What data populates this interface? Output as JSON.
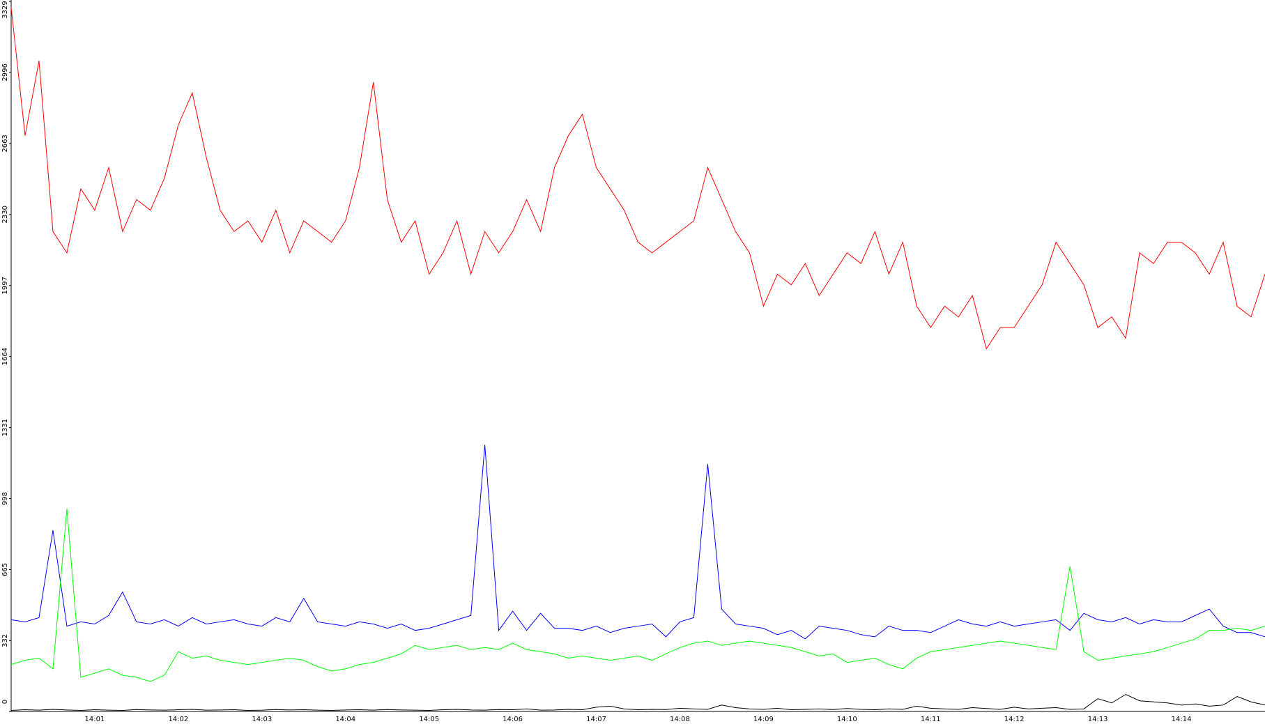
{
  "chart_data": {
    "type": "line",
    "categories": [
      null,
      null,
      null,
      null,
      null,
      null,
      "14:01",
      null,
      null,
      null,
      null,
      null,
      "14:02",
      null,
      null,
      null,
      null,
      null,
      "14:03",
      null,
      null,
      null,
      null,
      null,
      "14:04",
      null,
      null,
      null,
      null,
      null,
      "14:05",
      null,
      null,
      null,
      null,
      null,
      "14:06",
      null,
      null,
      null,
      null,
      null,
      "14:07",
      null,
      null,
      null,
      null,
      null,
      "14:08",
      null,
      null,
      null,
      null,
      null,
      "14:09",
      null,
      null,
      null,
      null,
      null,
      "14:10",
      null,
      null,
      null,
      null,
      null,
      "14:11",
      null,
      null,
      null,
      null,
      null,
      "14:12",
      null,
      null,
      null,
      null,
      null,
      "14:13",
      null,
      null,
      null,
      null,
      null,
      "14:14",
      null,
      null,
      null,
      null,
      null,
      null
    ],
    "ylim": [
      0,
      3329
    ],
    "yticks": [
      0,
      332,
      665,
      998,
      1331,
      1664,
      1997,
      2330,
      2663,
      2996,
      3329
    ],
    "series": [
      {
        "color": "#ff0000",
        "values": [
          3300,
          2700,
          3050,
          2250,
          2150,
          2450,
          2350,
          2550,
          2250,
          2400,
          2350,
          2500,
          2750,
          2900,
          2600,
          2350,
          2250,
          2300,
          2200,
          2350,
          2150,
          2300,
          2250,
          2200,
          2300,
          2550,
          2950,
          2400,
          2200,
          2300,
          2050,
          2150,
          2300,
          2050,
          2250,
          2150,
          2250,
          2400,
          2250,
          2550,
          2700,
          2800,
          2550,
          2450,
          2350,
          2200,
          2150,
          2200,
          2250,
          2300,
          2550,
          2400,
          2250,
          2150,
          1900,
          2050,
          2000,
          2100,
          1950,
          2050,
          2150,
          2100,
          2250,
          2050,
          2200,
          1900,
          1800,
          1900,
          1850,
          1950,
          1700,
          1800,
          1800,
          1900,
          2000,
          2200,
          2100,
          2000,
          1800,
          1850,
          1750,
          2150,
          2100,
          2200,
          2200,
          2150,
          2050,
          2200,
          1900,
          1850,
          2050
        ]
      },
      {
        "color": "#0000ff",
        "values": [
          430,
          420,
          440,
          850,
          400,
          420,
          410,
          450,
          560,
          420,
          410,
          430,
          400,
          440,
          410,
          420,
          430,
          410,
          400,
          440,
          420,
          530,
          420,
          410,
          400,
          420,
          410,
          390,
          410,
          380,
          390,
          410,
          430,
          450,
          1250,
          380,
          470,
          380,
          460,
          390,
          390,
          380,
          400,
          370,
          390,
          400,
          410,
          350,
          420,
          440,
          1160,
          480,
          410,
          400,
          390,
          360,
          380,
          340,
          400,
          390,
          380,
          360,
          350,
          400,
          380,
          380,
          370,
          400,
          430,
          410,
          400,
          420,
          400,
          410,
          420,
          430,
          380,
          460,
          430,
          420,
          440,
          410,
          430,
          420,
          420,
          450,
          480,
          400,
          370,
          370,
          350
        ]
      },
      {
        "color": "#00ff00",
        "values": [
          220,
          240,
          250,
          200,
          950,
          160,
          180,
          200,
          170,
          160,
          140,
          170,
          280,
          250,
          260,
          240,
          230,
          220,
          230,
          240,
          250,
          240,
          210,
          190,
          200,
          220,
          230,
          250,
          270,
          310,
          290,
          300,
          310,
          290,
          300,
          290,
          320,
          290,
          280,
          270,
          250,
          260,
          250,
          240,
          250,
          260,
          240,
          270,
          300,
          320,
          330,
          310,
          320,
          330,
          320,
          310,
          300,
          280,
          260,
          270,
          230,
          240,
          250,
          220,
          200,
          250,
          280,
          290,
          300,
          310,
          320,
          330,
          320,
          310,
          300,
          290,
          680,
          280,
          240,
          250,
          260,
          270,
          280,
          300,
          320,
          340,
          380,
          380,
          390,
          380,
          400
        ]
      },
      {
        "color": "#000000",
        "values": [
          5,
          8,
          6,
          10,
          7,
          5,
          8,
          6,
          5,
          9,
          7,
          6,
          8,
          10,
          6,
          7,
          8,
          5,
          6,
          9,
          7,
          8,
          6,
          5,
          7,
          8,
          6,
          9,
          7,
          6,
          5,
          8,
          10,
          7,
          6,
          9,
          8,
          12,
          6,
          7,
          10,
          8,
          20,
          25,
          12,
          8,
          10,
          9,
          15,
          12,
          10,
          30,
          18,
          12,
          10,
          15,
          8,
          10,
          12,
          9,
          14,
          10,
          8,
          12,
          10,
          25,
          15,
          12,
          10,
          18,
          14,
          10,
          20,
          12,
          15,
          18,
          10,
          12,
          60,
          40,
          80,
          50,
          45,
          40,
          30,
          35,
          25,
          30,
          70,
          45,
          30
        ]
      }
    ]
  }
}
